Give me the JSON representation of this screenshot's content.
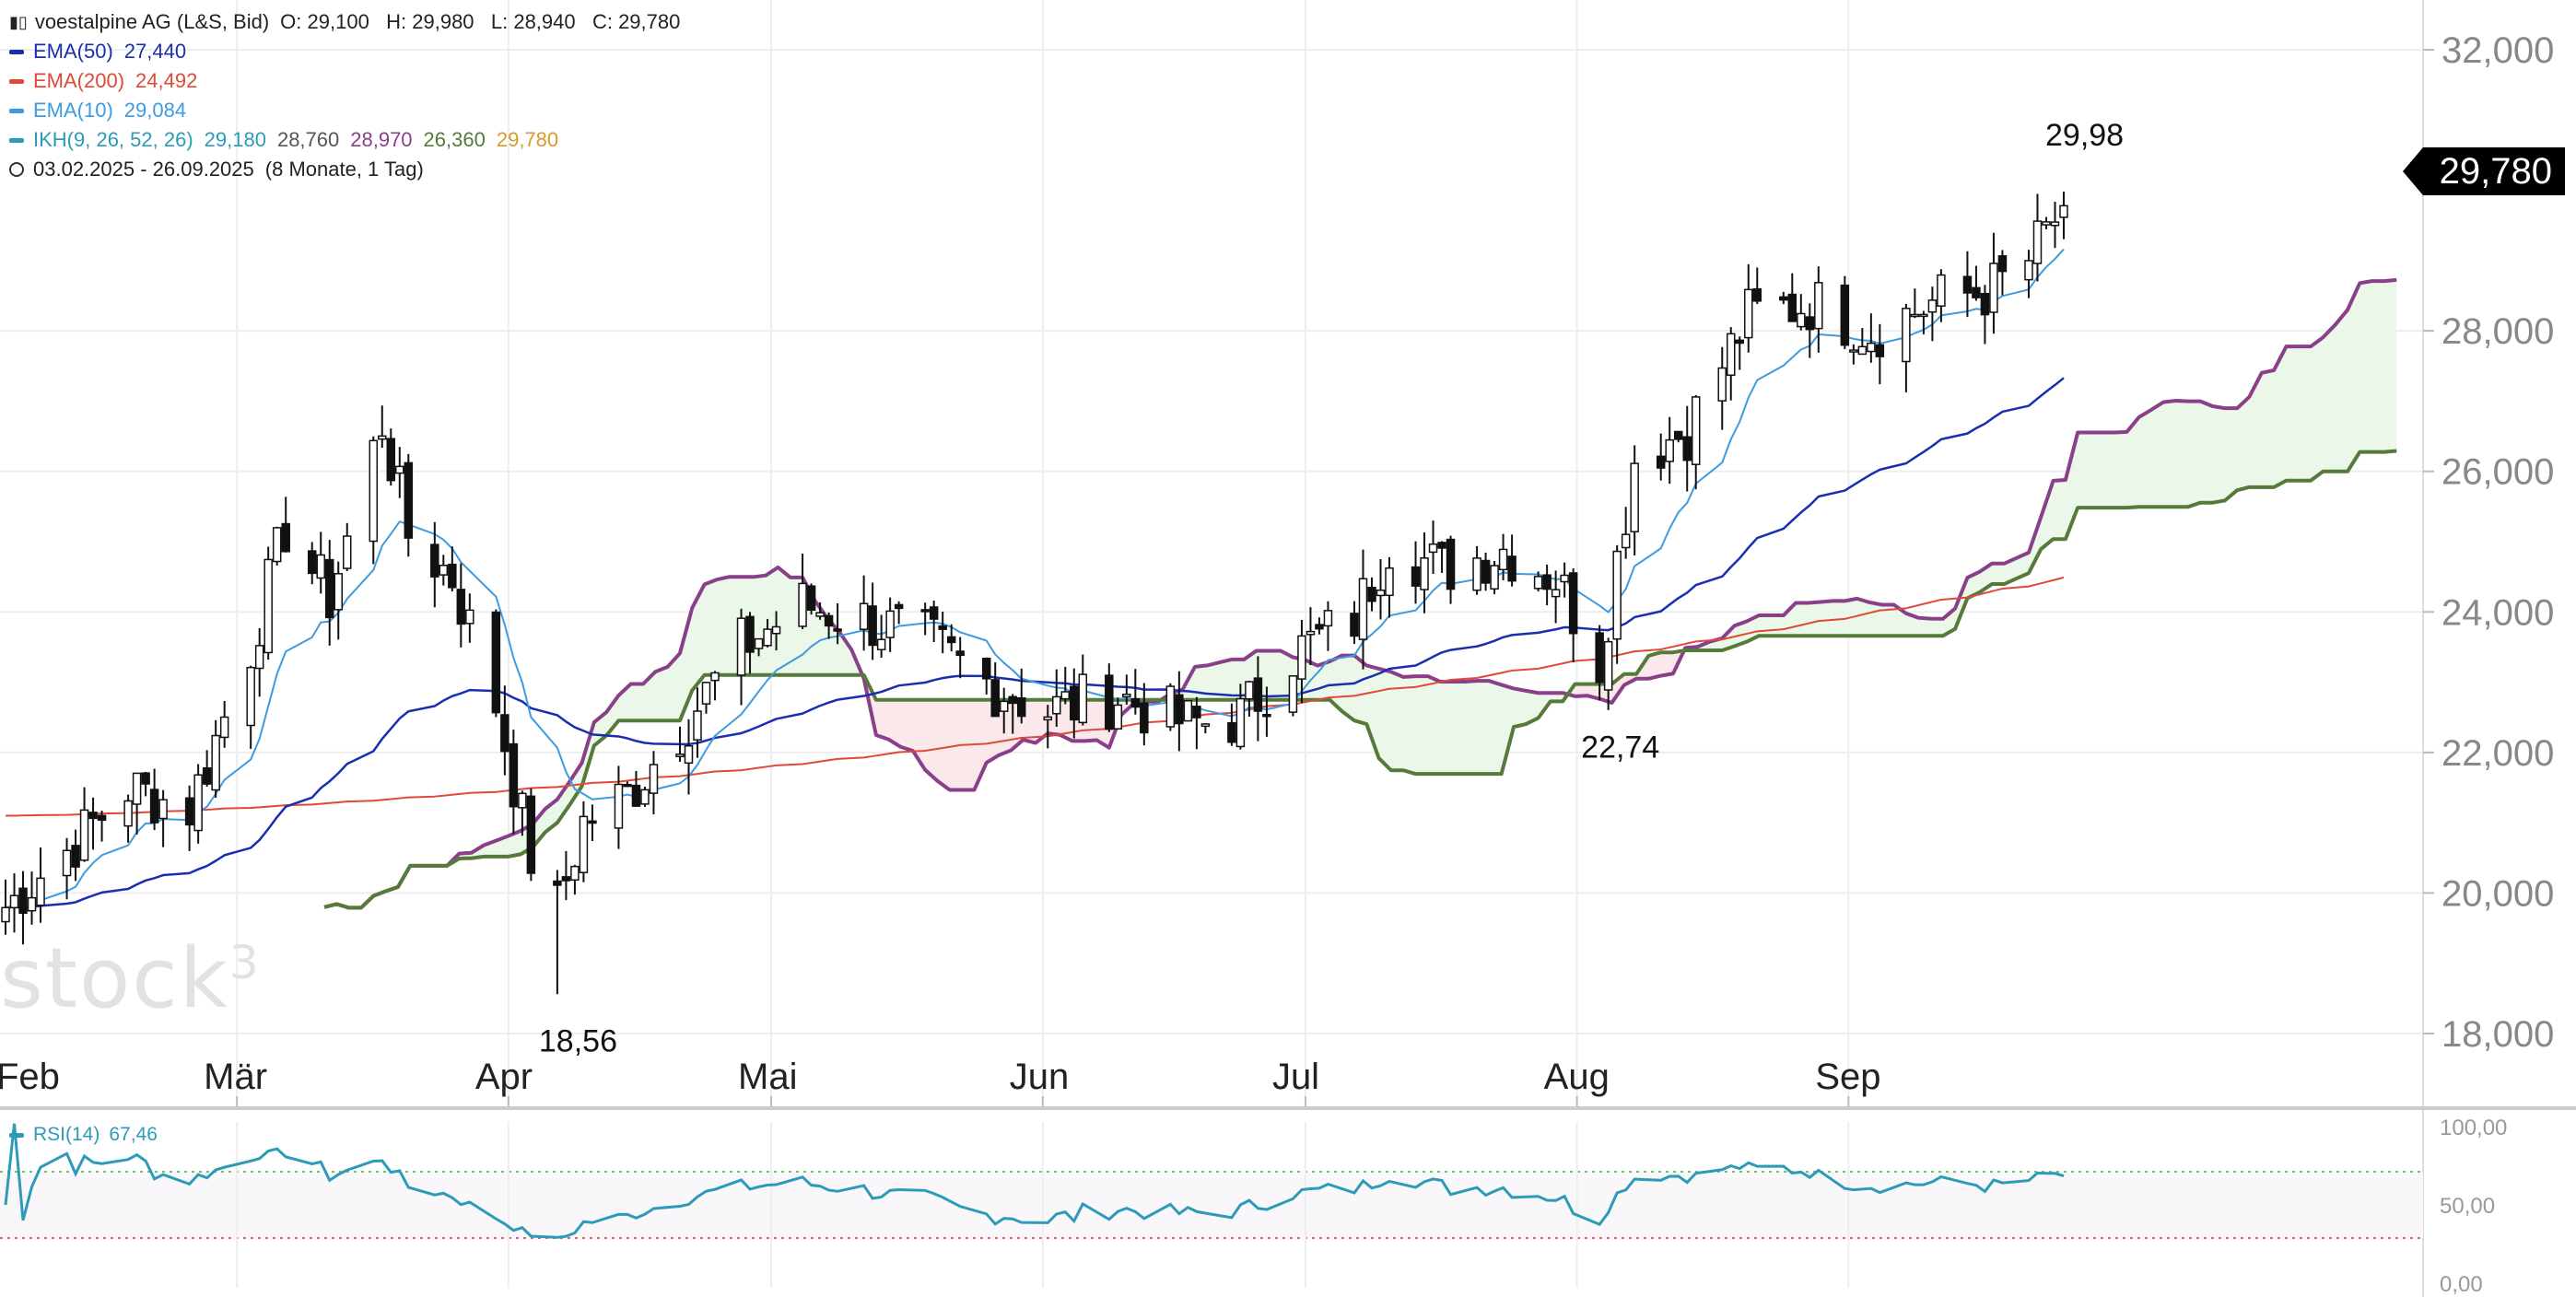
{
  "header": {
    "symbol_label": "voestalpine AG (L&S, Bid)",
    "ohlc": "O: 29,100   H: 29,980   L: 28,940   C: 29,780",
    "date_range": "03.02.2025 - 26.09.2025",
    "period": "(8 Monate, 1 Tag)"
  },
  "indicators": {
    "ema50": {
      "label": "EMA(50)",
      "value": "27,440",
      "color": "#1a2fb0"
    },
    "ema200": {
      "label": "EMA(200)",
      "value": "24,492",
      "color": "#e0493a"
    },
    "ema10": {
      "label": "EMA(10)",
      "value": "29,084",
      "color": "#3d9be0"
    },
    "ikh": {
      "label": "IKH(9, 26, 52, 26)",
      "v1": "29,180",
      "v2": "28,760",
      "v3": "28,970",
      "v4": "26,360",
      "v5": "29,780",
      "c1": "#2b9bb8",
      "c2": "#555555",
      "c3": "#8a3f8a",
      "c4": "#557a3a",
      "c5": "#d99a2b"
    }
  },
  "watermark": {
    "text": "stock",
    "sup": "3"
  },
  "price_tag": "29,780",
  "rsi": {
    "label": "RSI(14)",
    "value": "67,46",
    "color": "#2b9bb8"
  },
  "chart_data": {
    "type": "candlestick",
    "y_axis": {
      "ticks": [
        "32,000",
        "28,000",
        "26,000",
        "24,000",
        "22,000",
        "20,000",
        "18,000"
      ],
      "range": [
        17.5,
        32.6
      ]
    },
    "x_axis": {
      "ticks": [
        "Feb",
        "Mär",
        "Apr",
        "Mai",
        "Jun",
        "Jul",
        "Aug",
        "Sep"
      ]
    },
    "annotations": [
      {
        "text": "29,98",
        "value": 29.98,
        "date": "2025-09-26"
      },
      {
        "text": "18,56",
        "value": 18.56,
        "date": "2025-04-07"
      },
      {
        "text": "22,74",
        "value": 22.74,
        "date": "2025-08-04"
      }
    ],
    "last_close": 29.78,
    "rsi_axis": {
      "ticks": [
        "100,00",
        "50,00",
        "0,00"
      ],
      "overbought": 70,
      "oversold": 30
    },
    "close_path": [
      [
        "2025-02-03",
        19.8
      ],
      [
        "2025-02-10",
        20.6
      ],
      [
        "2025-02-17",
        21.5
      ],
      [
        "2025-02-24",
        21.2
      ],
      [
        "2025-03-03",
        23.5
      ],
      [
        "2025-03-07",
        25.2
      ],
      [
        "2025-03-12",
        24.2
      ],
      [
        "2025-03-18",
        26.7
      ],
      [
        "2025-03-21",
        25.1
      ],
      [
        "2025-03-26",
        24.5
      ],
      [
        "2025-03-31",
        22.7
      ],
      [
        "2025-04-04",
        20.5
      ],
      [
        "2025-04-07",
        19.8
      ],
      [
        "2025-04-10",
        21.0
      ],
      [
        "2025-04-15",
        21.4
      ],
      [
        "2025-04-22",
        22.5
      ],
      [
        "2025-04-28",
        23.5
      ],
      [
        "2025-05-05",
        24.1
      ],
      [
        "2025-05-12",
        23.9
      ],
      [
        "2025-05-19",
        23.6
      ],
      [
        "2025-05-26",
        23.0
      ],
      [
        "2025-06-02",
        22.6
      ],
      [
        "2025-06-10",
        22.8
      ],
      [
        "2025-06-18",
        22.4
      ],
      [
        "2025-06-24",
        22.5
      ],
      [
        "2025-06-30",
        23.4
      ],
      [
        "2025-07-07",
        23.9
      ],
      [
        "2025-07-11",
        25.0
      ],
      [
        "2025-07-17",
        24.6
      ],
      [
        "2025-07-24",
        24.9
      ],
      [
        "2025-07-30",
        24.5
      ],
      [
        "2025-08-04",
        23.3
      ],
      [
        "2025-08-08",
        26.2
      ],
      [
        "2025-08-14",
        26.6
      ],
      [
        "2025-08-21",
        28.2
      ],
      [
        "2025-08-28",
        28.4
      ],
      [
        "2025-09-04",
        28.0
      ],
      [
        "2025-09-11",
        28.4
      ],
      [
        "2025-09-18",
        28.6
      ],
      [
        "2025-09-22",
        29.0
      ],
      [
        "2025-09-26",
        29.78
      ]
    ]
  }
}
